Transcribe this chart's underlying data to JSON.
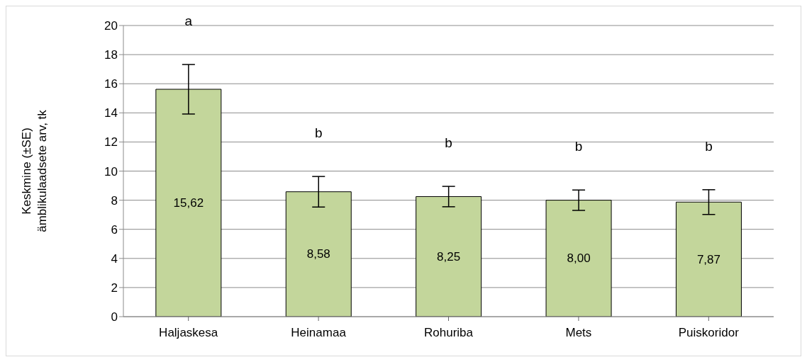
{
  "chart_data": {
    "type": "bar",
    "ylabel": "Keskmine (±SE)\nämblikulaadsete arv, tk",
    "categories": [
      "Haljaskesa",
      "Heinamaa",
      "Rohuriba",
      "Mets",
      "Puiskoridor"
    ],
    "values": [
      15.62,
      8.58,
      8.25,
      8.0,
      7.87
    ],
    "value_labels": [
      "15,62",
      "8,58",
      "8,25",
      "8,00",
      "7,87"
    ],
    "errors": [
      1.7,
      1.05,
      0.7,
      0.7,
      0.85
    ],
    "color": "#c3d69b",
    "ylim": [
      0,
      20
    ],
    "yticks": [
      0,
      2,
      4,
      6,
      8,
      10,
      12,
      14,
      16,
      18,
      20
    ],
    "grid": "y",
    "annotations": [
      "a",
      "b",
      "b",
      "b",
      "b"
    ]
  }
}
